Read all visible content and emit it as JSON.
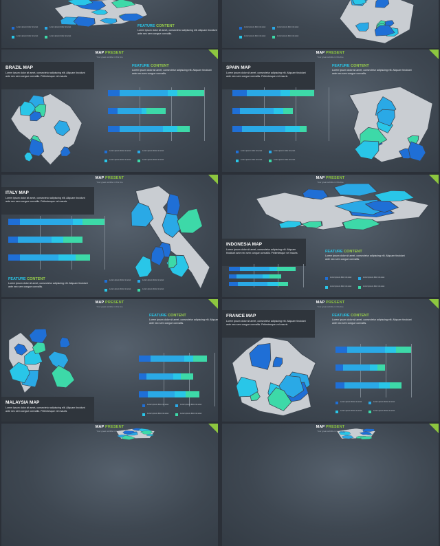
{
  "colors": {
    "blue": "#1f6fd6",
    "light_blue": "#2aa9e6",
    "cyan": "#29c6e8",
    "green": "#3dd9a8",
    "grey": "#c9cdd2",
    "accent": "#8dc63f"
  },
  "header": {
    "brand_a": "MAP",
    "brand_b": "PRESENT",
    "subtitle": "Your great subtitle in this line"
  },
  "lorem_short": "Lorem ipsum dolor sit amet, consectetur adipiscing elit. Aliquam tincidunt ante nec sem congue convallis. Pellentesque vel mauris",
  "lorem_feat": "Lorem ipsum dolor sit amet, consectetur adipiscing elit. Aliquam tincidunt ante nec sem congue convallis.",
  "legend_text": "Lorem ipsum dolor sit amet",
  "feature": {
    "a": "FEATURE",
    "b": "CONTENT"
  },
  "slides": [
    {
      "title": ""
    },
    {
      "title": ""
    },
    {
      "title": "BRAZIL MAP",
      "bars": [
        [
          0.12,
          0.5,
          0.1,
          0.28
        ],
        [
          0.1,
          0.25,
          0.05,
          0.2
        ],
        [
          0.12,
          0.45,
          0.15,
          0.13
        ]
      ]
    },
    {
      "title": "SPAIN MAP",
      "bars": [
        [
          0.15,
          0.35,
          0.1,
          0.25
        ],
        [
          0.08,
          0.35,
          0.1,
          0.1
        ],
        [
          0.1,
          0.45,
          0.15,
          0.07
        ]
      ]
    },
    {
      "title": "ITALY MAP",
      "bars": [
        [
          0.12,
          0.55,
          0.1,
          0.23
        ],
        [
          0.1,
          0.35,
          0.12,
          0.2
        ],
        [
          0.12,
          0.4,
          0.18,
          0.15
        ]
      ]
    },
    {
      "title": "INDONESIA MAP",
      "bars": [
        [
          0.15,
          0.4,
          0.1,
          0.25
        ],
        [
          0.1,
          0.35,
          0.1,
          0.15
        ],
        [
          0.12,
          0.4,
          0.15,
          0.13
        ]
      ]
    },
    {
      "title": "MALAYSIA MAP",
      "bars": [
        [
          0.15,
          0.45,
          0.12,
          0.18
        ],
        [
          0.1,
          0.35,
          0.1,
          0.17
        ],
        [
          0.12,
          0.35,
          0.15,
          0.18
        ]
      ]
    },
    {
      "title": "FRANCE MAP",
      "bars": [
        [
          0.15,
          0.5,
          0.15,
          0.2
        ],
        [
          0.1,
          0.35,
          0.1,
          0.1
        ],
        [
          0.12,
          0.45,
          0.15,
          0.15
        ]
      ]
    },
    {
      "title": ""
    },
    {
      "title": ""
    }
  ]
}
